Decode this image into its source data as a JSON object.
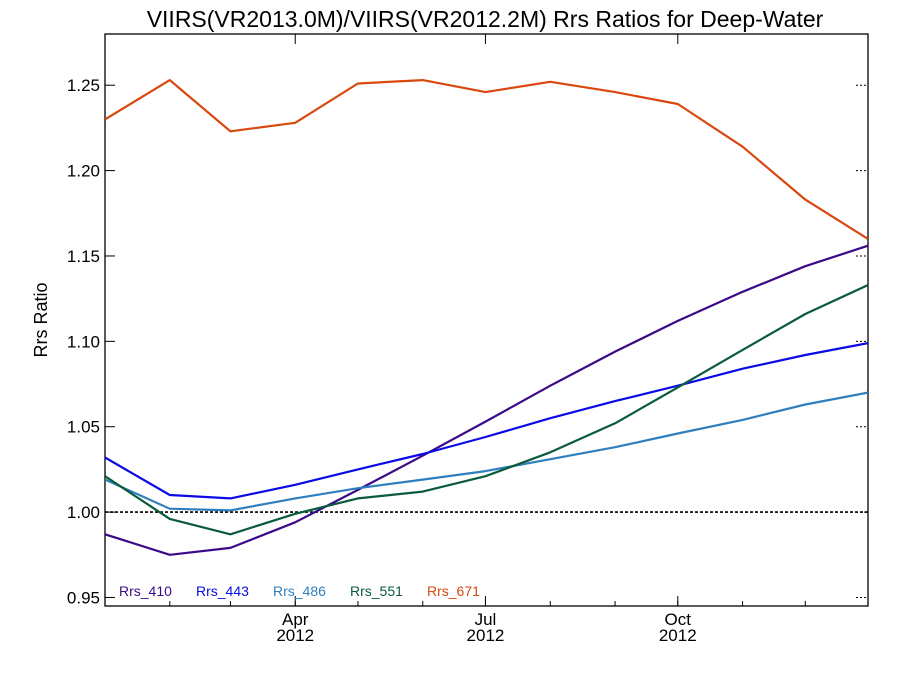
{
  "chart_data": {
    "type": "line",
    "title": "VIIRS(VR2013.0M)/VIIRS(VR2012.2M)  Rrs Ratios for Deep-Water",
    "xlabel": "",
    "ylabel": "Rrs Ratio",
    "xlim": [
      "2012-01-01",
      "2012-12-31"
    ],
    "ylim": [
      0.945,
      1.28
    ],
    "y_ticks": [
      "0.95",
      "1.00",
      "1.05",
      "1.10",
      "1.15",
      "1.20",
      "1.25"
    ],
    "x_ticks": [
      {
        "month": "Apr",
        "year": "2012",
        "date": "2012-04-01"
      },
      {
        "month": "Jul",
        "year": "2012",
        "date": "2012-07-01"
      },
      {
        "month": "Oct",
        "year": "2012",
        "date": "2012-10-01"
      }
    ],
    "reference_line": 1.0,
    "grid": false,
    "legend_position": "bottom-left",
    "x": [
      "2012-01-01",
      "2012-02-01",
      "2012-03-01",
      "2012-04-01",
      "2012-05-01",
      "2012-06-01",
      "2012-07-01",
      "2012-08-01",
      "2012-09-01",
      "2012-10-01",
      "2012-11-01",
      "2012-12-01",
      "2012-12-31"
    ],
    "series": [
      {
        "name": "Rrs_410",
        "color": "#3a0a8a",
        "values": [
          0.987,
          0.975,
          0.979,
          0.994,
          1.013,
          1.033,
          1.053,
          1.074,
          1.094,
          1.112,
          1.129,
          1.144,
          1.156
        ]
      },
      {
        "name": "Rrs_443",
        "color": "#0a0ae6",
        "values": [
          1.032,
          1.01,
          1.008,
          1.016,
          1.025,
          1.034,
          1.044,
          1.055,
          1.065,
          1.074,
          1.084,
          1.092,
          1.099
        ]
      },
      {
        "name": "Rrs_486",
        "color": "#2f7fbf",
        "values": [
          1.019,
          1.002,
          1.001,
          1.008,
          1.014,
          1.019,
          1.024,
          1.031,
          1.038,
          1.046,
          1.054,
          1.063,
          1.07
        ]
      },
      {
        "name": "Rrs_551",
        "color": "#0a5a3c",
        "values": [
          1.021,
          0.996,
          0.987,
          0.999,
          1.008,
          1.012,
          1.021,
          1.035,
          1.052,
          1.073,
          1.095,
          1.116,
          1.133
        ]
      },
      {
        "name": "Rrs_671",
        "color": "#d9480f",
        "values": [
          1.23,
          1.253,
          1.223,
          1.228,
          1.251,
          1.253,
          1.246,
          1.252,
          1.246,
          1.239,
          1.214,
          1.183,
          1.16
        ]
      }
    ]
  }
}
